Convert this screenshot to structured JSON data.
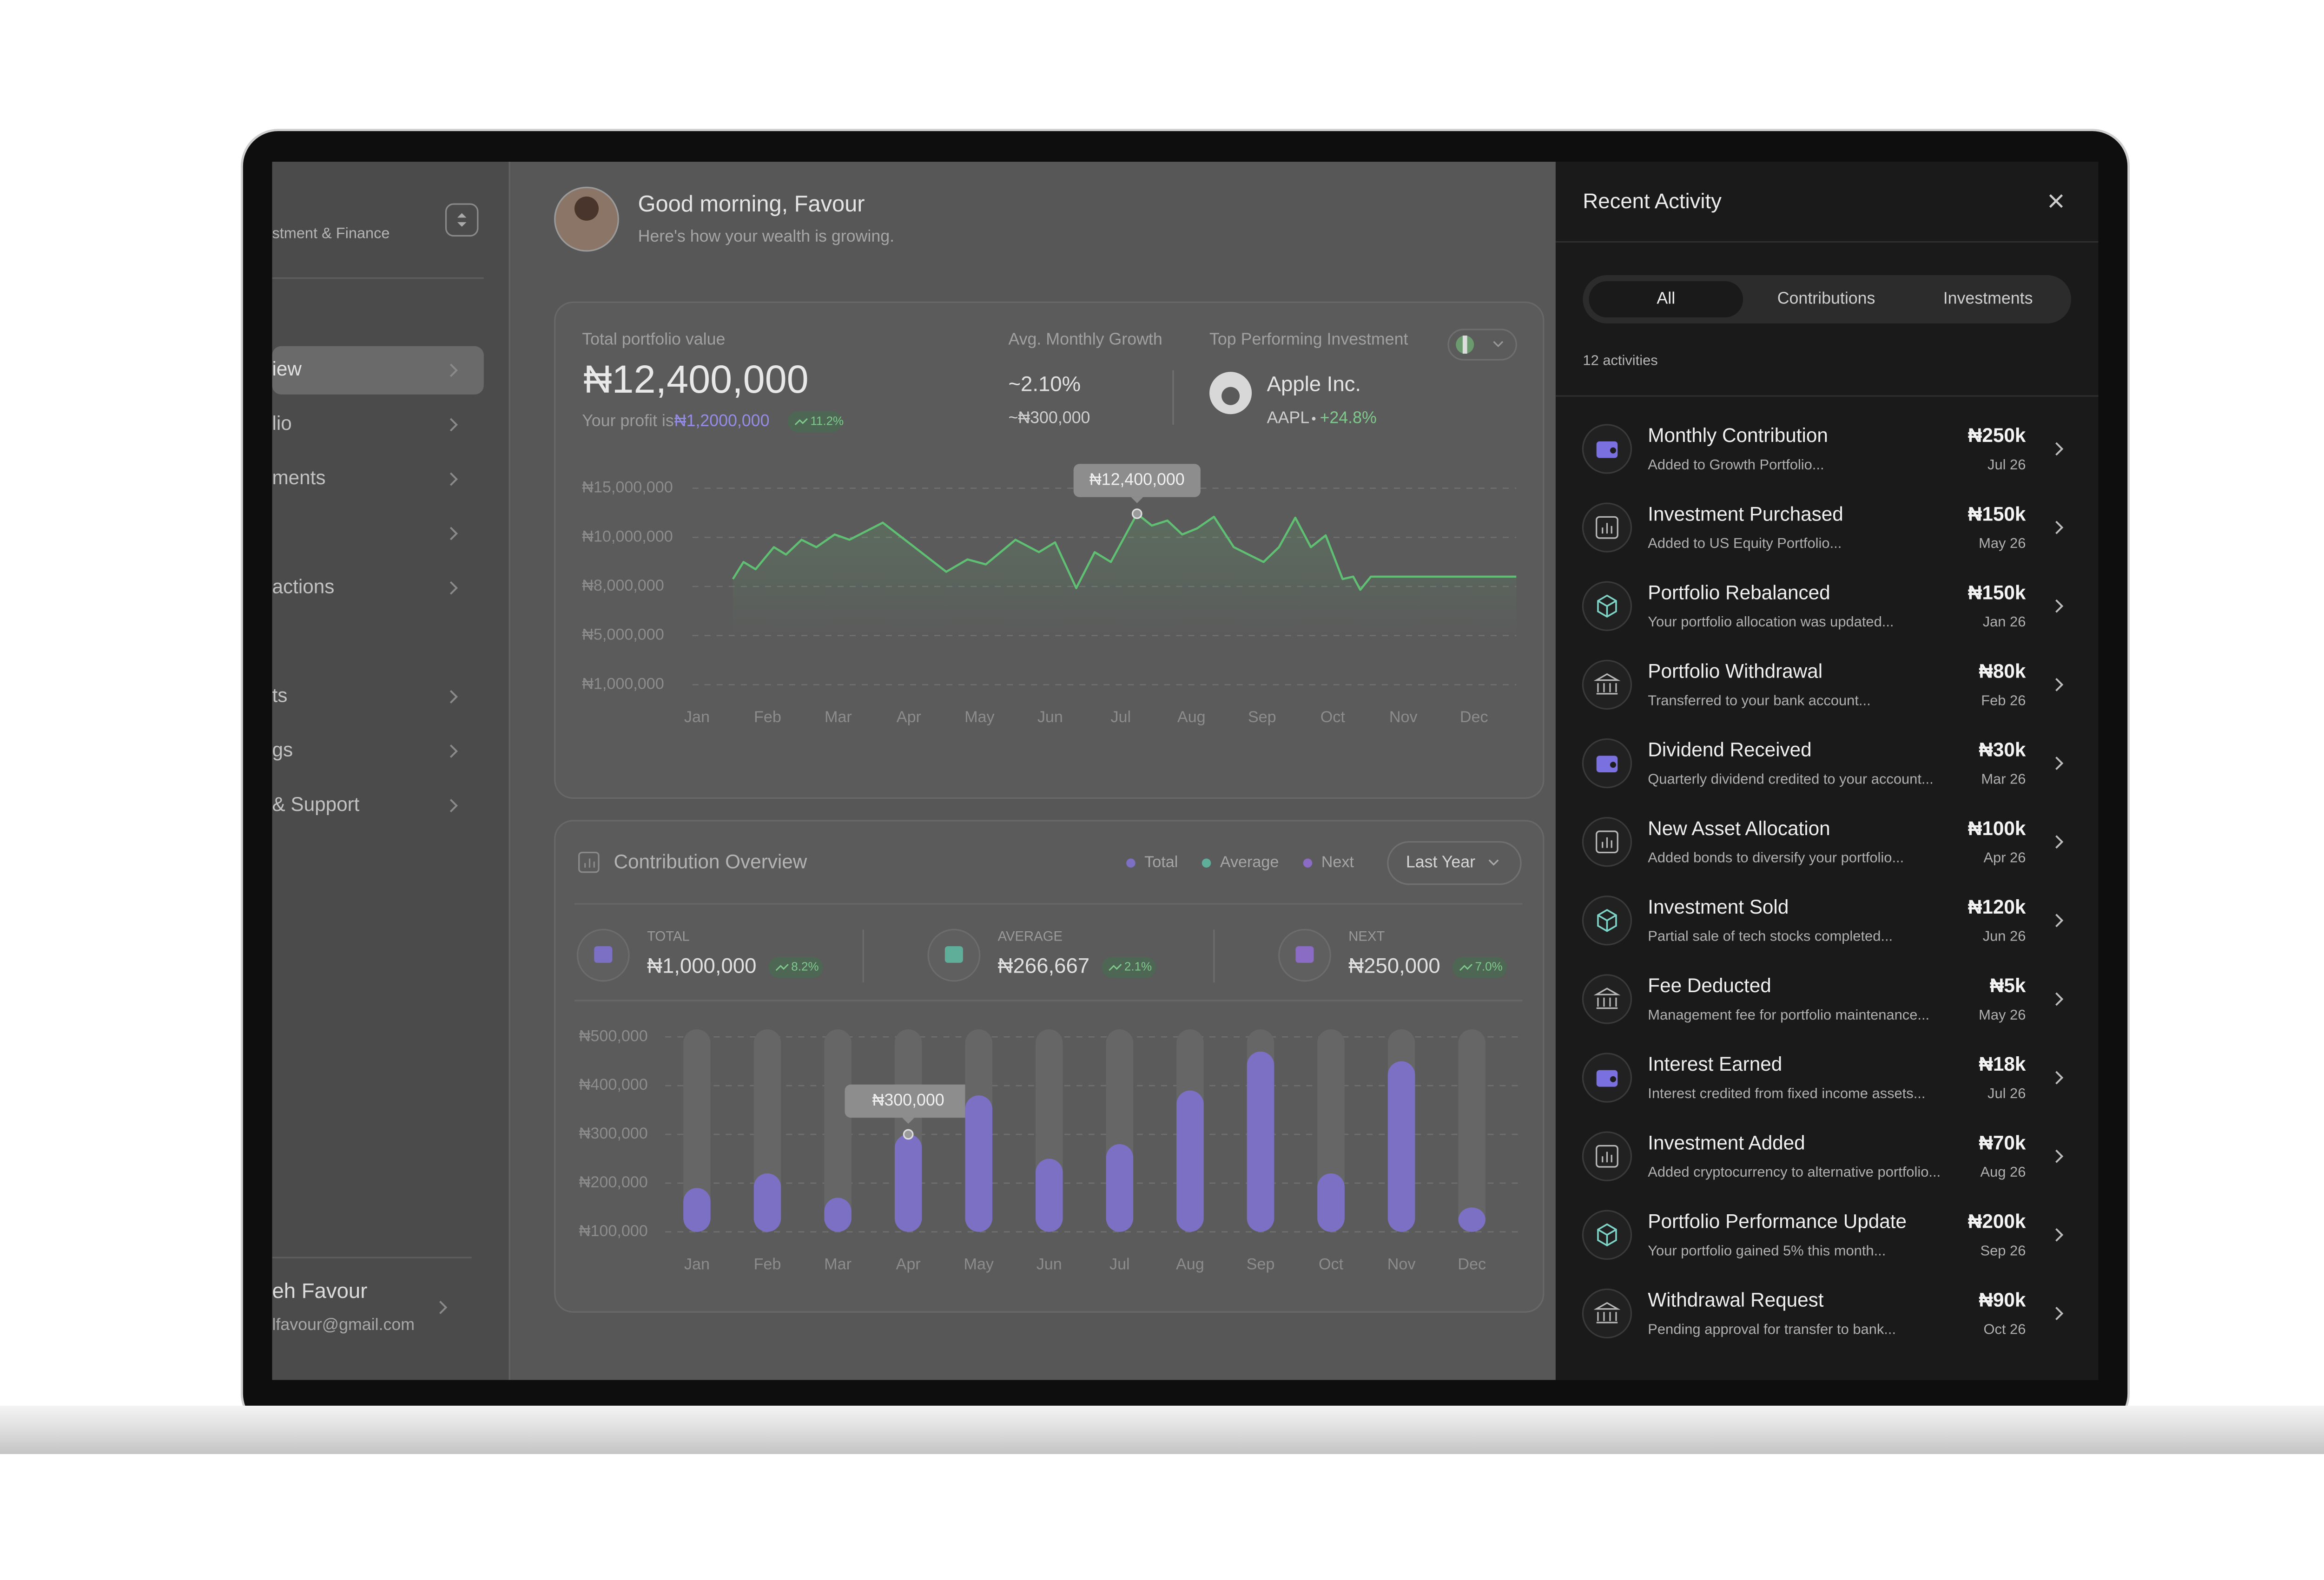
{
  "sidebar": {
    "brand": "stment & Finance",
    "nav": [
      "iew",
      "lio",
      "ments",
      "actions",
      "ts",
      "gs",
      "& Support"
    ],
    "user_name": "eh Favour",
    "user_email": "lfavour@gmail.com"
  },
  "header": {
    "greeting": "Good morning, Favour",
    "subtitle": "Here's how your wealth is growing."
  },
  "portfolio": {
    "label": "Total portfolio value",
    "value": "₦12,400,000",
    "profit_prefix": "Your profit is",
    "profit": "₦1,2000,000",
    "profit_change": "11.2%",
    "growth_label": "Avg. Monthly Growth",
    "growth": "~2.10%",
    "growth_amount": "~₦300,000",
    "top_label": "Top Performing Investment",
    "top_name": "Apple Inc.",
    "top_ticker": "AAPL",
    "top_change": "+24.8%"
  },
  "chart_data": [
    {
      "type": "line",
      "color": "#5fbf72",
      "grid": true,
      "x": [
        0.51,
        0.66,
        0.83,
        1.09,
        1.26,
        1.48,
        1.69,
        1.95,
        2.16,
        2.63,
        3.08,
        3.53,
        3.83,
        4.09,
        4.51,
        4.84,
        5.07,
        5.37,
        5.63,
        5.86,
        6.23,
        6.44,
        6.66,
        6.87,
        7.08,
        7.32,
        7.6,
        7.81,
        8.02,
        8.24,
        8.47,
        8.69,
        8.9,
        9.14,
        9.29,
        9.39,
        9.54,
        11.6
      ],
      "values": [
        8300000,
        9000000,
        8700000,
        9600000,
        9300000,
        9900000,
        9600000,
        10300000,
        9900000,
        11500000,
        9600000,
        8600000,
        9100000,
        8900000,
        9900000,
        9400000,
        9800000,
        7900000,
        9400000,
        9000000,
        12400000,
        11200000,
        11700000,
        10300000,
        10900000,
        12100000,
        9600000,
        9300000,
        9000000,
        9600000,
        12000000,
        9600000,
        10200000,
        8300000,
        8400000,
        7800000,
        8400000,
        8400000
      ],
      "value_labels": [
        null,
        null,
        null,
        null,
        null,
        null,
        null,
        null,
        null,
        null,
        null,
        null,
        null,
        null,
        null,
        null,
        null,
        null,
        null,
        null,
        "₦12,400,000",
        null,
        null,
        null,
        null,
        null,
        null,
        null,
        null,
        null,
        null,
        null,
        null,
        null,
        null,
        null,
        null,
        null
      ],
      "xlim": [
        0,
        11
      ],
      "xticks": [
        {
          "value": 0,
          "label": "Jan"
        },
        {
          "value": 1,
          "label": "Feb"
        },
        {
          "value": 2,
          "label": "Mar"
        },
        {
          "value": 3,
          "label": "Apr"
        },
        {
          "value": 4,
          "label": "May"
        },
        {
          "value": 5,
          "label": "Jun"
        },
        {
          "value": 6,
          "label": "Jul"
        },
        {
          "value": 7,
          "label": "Aug"
        },
        {
          "value": 8,
          "label": "Sep"
        },
        {
          "value": 9,
          "label": "Oct"
        },
        {
          "value": 10,
          "label": "Nov"
        },
        {
          "value": 11,
          "label": "Dec"
        }
      ],
      "ylim": [
        1000000,
        15000000
      ],
      "yticks": [
        {
          "value": 15000000,
          "label": "₦15,000,000"
        },
        {
          "value": 10000000,
          "label": "₦10,000,000"
        },
        {
          "value": 8000000,
          "label": "₦8,000,000"
        },
        {
          "value": 5000000,
          "label": "₦5,000,000"
        },
        {
          "value": 1000000,
          "label": "₦1,000,000"
        }
      ]
    },
    {
      "type": "bar",
      "color": "#7b70c4",
      "grid": true,
      "categories": [
        "Jan",
        "Feb",
        "Mar",
        "Apr",
        "May",
        "Jun",
        "Jul",
        "Aug",
        "Sep",
        "Oct",
        "Nov",
        "Dec"
      ],
      "values": [
        190000,
        220000,
        170000,
        300000,
        380000,
        250000,
        280000,
        390000,
        470000,
        220000,
        450000,
        150000
      ],
      "value_labels": [
        null,
        null,
        null,
        "₦300,000",
        null,
        null,
        null,
        null,
        null,
        null,
        null,
        null
      ],
      "ylim": [
        100000,
        500000
      ],
      "yticks": [
        {
          "value": 500000,
          "label": "₦500,000"
        },
        {
          "value": 400000,
          "label": "₦400,000"
        },
        {
          "value": 300000,
          "label": "₦300,000"
        },
        {
          "value": 200000,
          "label": "₦200,000"
        },
        {
          "value": 100000,
          "label": "₦100,000"
        }
      ]
    }
  ],
  "contribution": {
    "title": "Contribution Overview",
    "legend": [
      {
        "name": "Total",
        "color": "#7b70c4"
      },
      {
        "name": "Average",
        "color": "#5fae9a"
      },
      {
        "name": "Next",
        "color": "#8a6cc4"
      }
    ],
    "period": "Last Year",
    "stats": [
      {
        "label": "TOTAL",
        "value": "₦1,000,000",
        "change": "8.2%"
      },
      {
        "label": "AVERAGE",
        "value": "₦266,667",
        "change": "2.1%"
      },
      {
        "label": "NEXT",
        "value": "₦250,000",
        "change": "7.0%"
      }
    ]
  },
  "activity": {
    "title": "Recent Activity",
    "tabs": [
      "All",
      "Contributions",
      "Investments"
    ],
    "count": "12 activities",
    "items": [
      {
        "title": "Monthly Contribution",
        "subtitle": "Added to Growth Portfolio...",
        "amount": "₦250k",
        "date": "Jul 26"
      },
      {
        "title": "Investment Purchased",
        "subtitle": "Added to US Equity Portfolio...",
        "amount": "₦150k",
        "date": "May 26"
      },
      {
        "title": "Portfolio Rebalanced",
        "subtitle": "Your portfolio allocation was updated...",
        "amount": "₦150k",
        "date": "Jan 26"
      },
      {
        "title": "Portfolio Withdrawal",
        "subtitle": "Transferred to your bank account...",
        "amount": "₦80k",
        "date": "Feb 26"
      },
      {
        "title": "Dividend Received",
        "subtitle": "Quarterly dividend credited to your account...",
        "amount": "₦30k",
        "date": "Mar 26"
      },
      {
        "title": "New Asset Allocation",
        "subtitle": "Added bonds to diversify your portfolio...",
        "amount": "₦100k",
        "date": "Apr 26"
      },
      {
        "title": "Investment Sold",
        "subtitle": "Partial sale of tech stocks completed...",
        "amount": "₦120k",
        "date": "Jun 26"
      },
      {
        "title": "Fee Deducted",
        "subtitle": "Management fee for portfolio maintenance...",
        "amount": "₦5k",
        "date": "May 26"
      },
      {
        "title": "Interest Earned",
        "subtitle": "Interest credited from fixed income assets...",
        "amount": "₦18k",
        "date": "Jul 26"
      },
      {
        "title": "Investment Added",
        "subtitle": "Added cryptocurrency to alternative portfolio...",
        "amount": "₦70k",
        "date": "Aug 26"
      },
      {
        "title": "Portfolio Performance Update",
        "subtitle": "Your portfolio gained 5% this month...",
        "amount": "₦200k",
        "date": "Sep 26"
      },
      {
        "title": "Withdrawal Request",
        "subtitle": "Pending approval for transfer to bank...",
        "amount": "₦90k",
        "date": "Oct 26"
      }
    ]
  }
}
